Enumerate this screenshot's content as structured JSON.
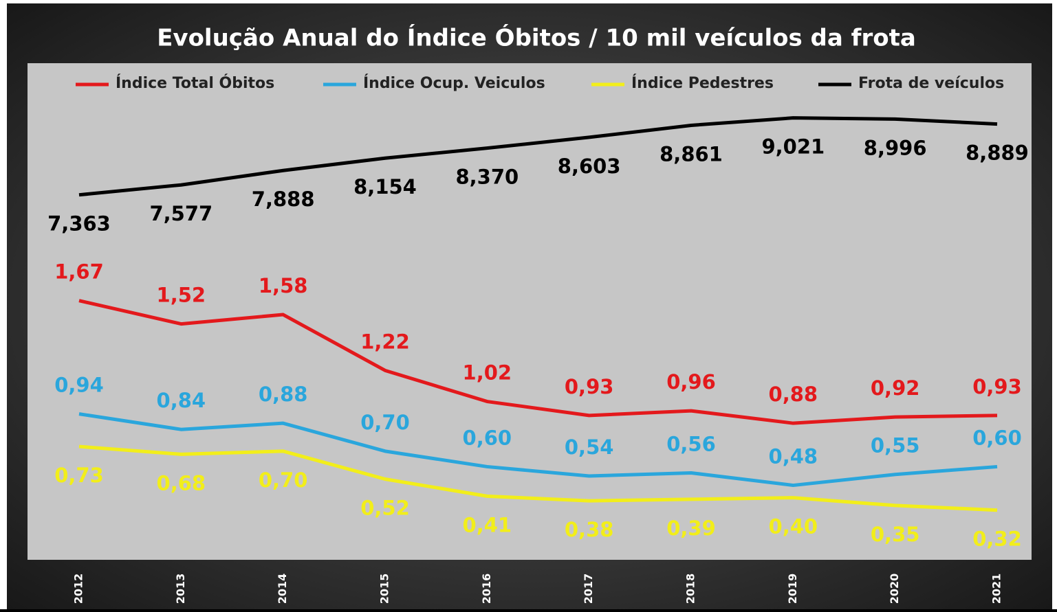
{
  "chart_data": {
    "type": "line",
    "title": "Evolução Anual do Índice Óbitos / 10 mil veículos da frota",
    "categories": [
      "2012",
      "2013",
      "2014",
      "2015",
      "2016",
      "2017",
      "2018",
      "2019",
      "2020",
      "2021"
    ],
    "ylim": [
      0,
      3.2
    ],
    "y2lim": [
      -0.5,
      10.2
    ],
    "series": [
      {
        "name": "Índice Total Óbitos",
        "color": "#e3191c",
        "label_pos": "above",
        "values": [
          1.67,
          1.52,
          1.58,
          1.22,
          1.02,
          0.93,
          0.96,
          0.88,
          0.92,
          0.93
        ],
        "value_labels": [
          "1,67",
          "1,52",
          "1,58",
          "1,22",
          "1,02",
          "0,93",
          "0,96",
          "0,88",
          "0,92",
          "0,93"
        ]
      },
      {
        "name": "Índice Ocup. Veiculos",
        "color": "#2aa6dc",
        "label_pos": "above",
        "values": [
          0.94,
          0.84,
          0.88,
          0.7,
          0.6,
          0.54,
          0.56,
          0.48,
          0.55,
          0.6
        ],
        "value_labels": [
          "0,94",
          "0,84",
          "0,88",
          "0,70",
          "0,60",
          "0,54",
          "0,56",
          "0,48",
          "0,55",
          "0,60"
        ]
      },
      {
        "name": "Índice Pedestres",
        "color": "#f2ee1a",
        "label_pos": "below",
        "values": [
          0.73,
          0.68,
          0.7,
          0.52,
          0.41,
          0.38,
          0.39,
          0.4,
          0.35,
          0.32
        ],
        "value_labels": [
          "0,73",
          "0,68",
          "0,70",
          "0,52",
          "0,41",
          "0,38",
          "0,39",
          "0,40",
          "0,35",
          "0,32"
        ]
      },
      {
        "name": "Frota de veículos",
        "color": "#000000",
        "axis": "y2",
        "label_pos": "below",
        "values": [
          7.363,
          7.577,
          7.888,
          8.154,
          8.37,
          8.603,
          8.861,
          9.021,
          8.996,
          8.889
        ],
        "value_labels": [
          "7,363",
          "7,577",
          "7,888",
          "8,154",
          "8,370",
          "8,603",
          "8,861",
          "9,021",
          "8,996",
          "8,889"
        ]
      }
    ]
  }
}
